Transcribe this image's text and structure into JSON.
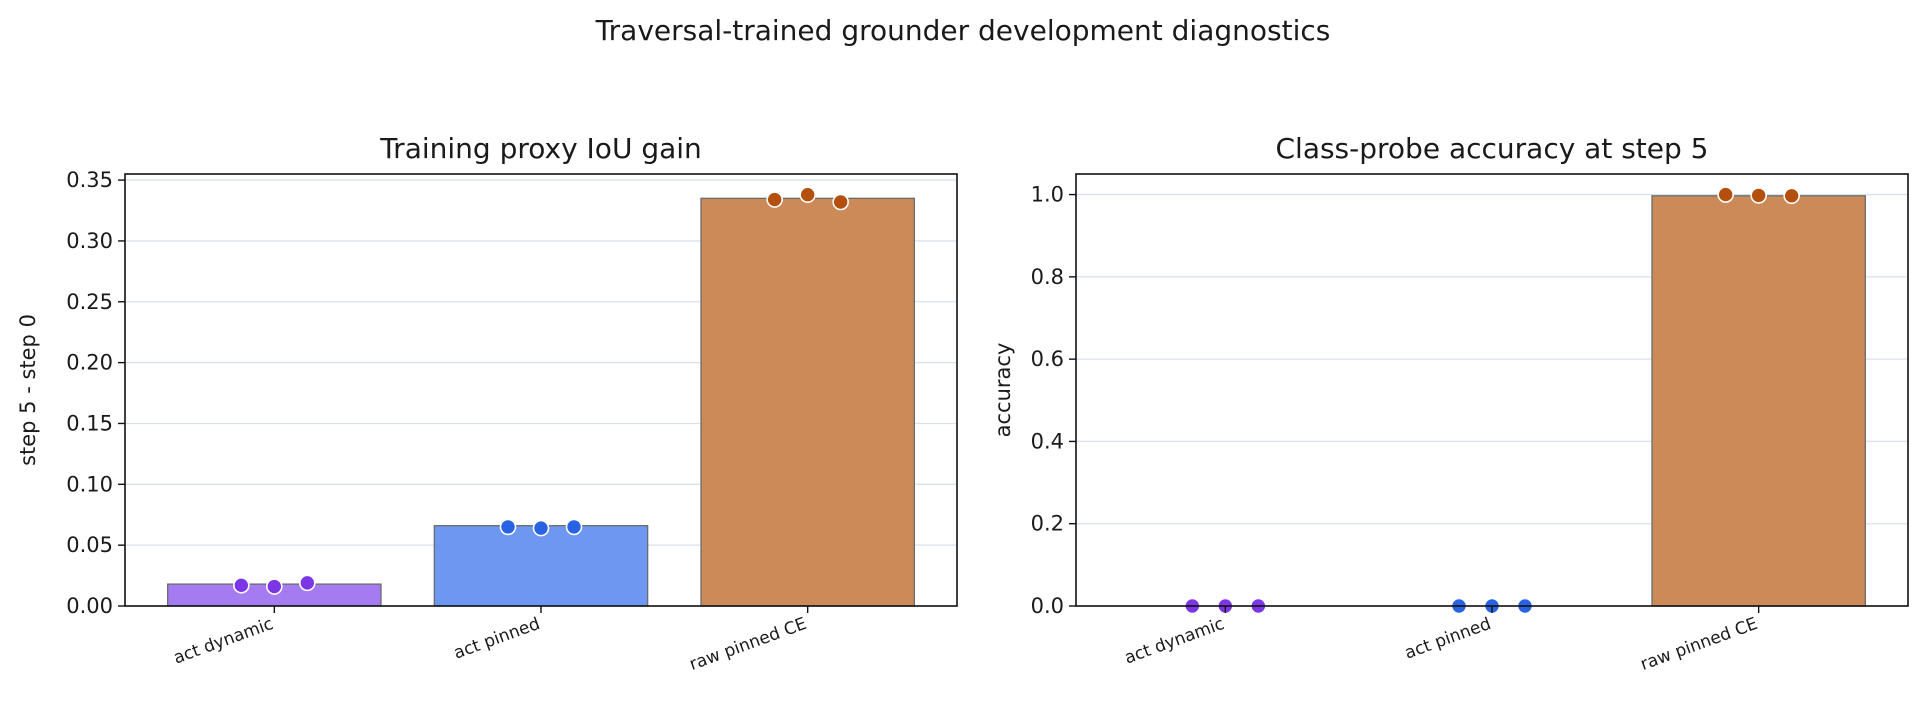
{
  "figure": {
    "suptitle": "Traversal-trained grounder development diagnostics"
  },
  "colors": {
    "bars": [
      "#a57bf2",
      "#6d97f0",
      "#cb8a58"
    ],
    "dots": [
      "#7b36e6",
      "#2763e3",
      "#b44f0d"
    ],
    "grid": "#d7e2ee",
    "bar_edge": "#6b6b6b"
  },
  "chart_data": [
    {
      "type": "bar",
      "title": "Training proxy IoU gain",
      "xlabel": "",
      "ylabel": "step 5 - step 0",
      "categories": [
        "act dynamic",
        "act pinned",
        "raw pinned CE"
      ],
      "values": [
        0.018,
        0.066,
        0.335
      ],
      "points": [
        [
          0.017,
          0.016,
          0.019
        ],
        [
          0.065,
          0.064,
          0.065
        ],
        [
          0.334,
          0.338,
          0.332
        ]
      ],
      "ylim": [
        0,
        0.355
      ],
      "yticks": [
        0.0,
        0.05,
        0.1,
        0.15,
        0.2,
        0.25,
        0.3,
        0.35
      ],
      "ytick_labels": [
        "0.00",
        "0.05",
        "0.10",
        "0.15",
        "0.20",
        "0.25",
        "0.30",
        "0.35"
      ],
      "grid": "horizontal",
      "legend": "none"
    },
    {
      "type": "bar",
      "title": "Class-probe accuracy at step 5",
      "xlabel": "",
      "ylabel": "accuracy",
      "categories": [
        "act dynamic",
        "act pinned",
        "raw pinned CE"
      ],
      "values": [
        0.0,
        0.0,
        0.997
      ],
      "points": [
        [
          0.0,
          0.0,
          0.0
        ],
        [
          0.0,
          0.0,
          0.0
        ],
        [
          1.0,
          0.998,
          0.997
        ]
      ],
      "ylim": [
        0,
        1.05
      ],
      "yticks": [
        0.0,
        0.2,
        0.4,
        0.6,
        0.8,
        1.0
      ],
      "ytick_labels": [
        "0.0",
        "0.2",
        "0.4",
        "0.6",
        "0.8",
        "1.0"
      ],
      "grid": "horizontal",
      "legend": "none"
    }
  ]
}
